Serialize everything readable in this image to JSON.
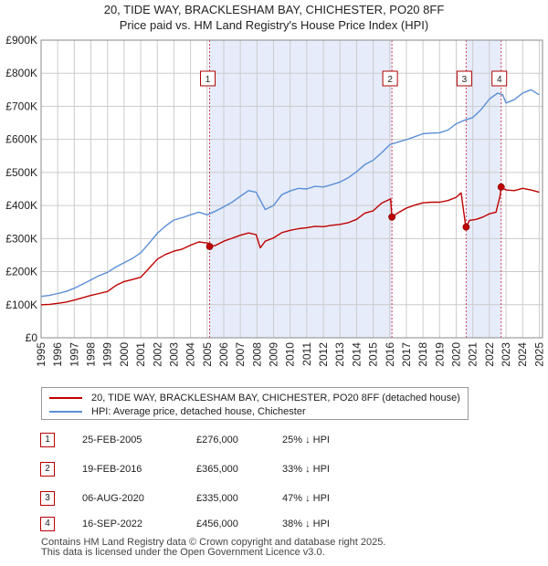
{
  "title_line1": "20, TIDE WAY, BRACKLESHAM BAY, CHICHESTER, PO20 8FF",
  "title_line2": "Price paid vs. HM Land Registry's House Price Index (HPI)",
  "colors": {
    "property": "#c00000",
    "hpi": "#5b8fd6",
    "band": "#e6ecfa",
    "marker_line": "#d04060",
    "grid": "#cccccc"
  },
  "legend": {
    "property_label": "20, TIDE WAY, BRACKLESHAM BAY, CHICHESTER, PO20 8FF (detached house)",
    "hpi_label": "HPI: Average price, detached house, Chichester"
  },
  "sales": [
    {
      "num": "1",
      "date": "25-FEB-2005",
      "price": "£276,000",
      "diff": "25% ↓ HPI",
      "t": 2005.15,
      "value": 276000
    },
    {
      "num": "2",
      "date": "19-FEB-2016",
      "price": "£365,000",
      "diff": "33% ↓ HPI",
      "t": 2016.13,
      "value": 365000
    },
    {
      "num": "3",
      "date": "06-AUG-2020",
      "price": "£335,000",
      "diff": "47% ↓ HPI",
      "t": 2020.6,
      "value": 335000
    },
    {
      "num": "4",
      "date": "16-SEP-2022",
      "price": "£456,000",
      "diff": "38% ↓ HPI",
      "t": 2022.71,
      "value": 456000
    }
  ],
  "footer_line1": "Contains HM Land Registry data © Crown copyright and database right 2025.",
  "footer_line2": "This data is licensed under the Open Government Licence v3.0.",
  "chart_data": {
    "type": "line",
    "title": "20, TIDE WAY, BRACKLESHAM BAY, CHICHESTER, PO20 8FF — Price paid vs. HM Land Registry's House Price Index (HPI)",
    "xlabel": "",
    "ylabel": "",
    "xlim": [
      1995,
      2025.2
    ],
    "ylim": [
      0,
      900000
    ],
    "grid": true,
    "legend_position": "below",
    "x_ticks": [
      1995,
      1996,
      1997,
      1998,
      1999,
      2000,
      2001,
      2002,
      2003,
      2004,
      2005,
      2006,
      2007,
      2008,
      2009,
      2010,
      2011,
      2012,
      2013,
      2014,
      2015,
      2016,
      2017,
      2018,
      2019,
      2020,
      2021,
      2022,
      2023,
      2024,
      2025
    ],
    "x_tick_labels": [
      "1995",
      "1996",
      "1997",
      "1998",
      "1999",
      "2000",
      "2001",
      "2002",
      "2003",
      "2004",
      "2005",
      "2006",
      "2007",
      "2008",
      "2009",
      "2010",
      "2011",
      "2012",
      "2013",
      "2014",
      "2015",
      "2016",
      "2017",
      "2018",
      "2019",
      "2020",
      "2021",
      "2022",
      "2023",
      "2024",
      "2025"
    ],
    "y_ticks": [
      0,
      100000,
      200000,
      300000,
      400000,
      500000,
      600000,
      700000,
      800000,
      900000
    ],
    "y_tick_labels": [
      "£0",
      "£100K",
      "£200K",
      "£300K",
      "£400K",
      "£500K",
      "£600K",
      "£700K",
      "£800K",
      "£900K"
    ],
    "shaded_spans": [
      [
        2005.15,
        2016.13
      ],
      [
        2020.6,
        2022.71
      ]
    ],
    "series": [
      {
        "name": "20, TIDE WAY, BRACKLESHAM BAY, CHICHESTER, PO20 8FF (detached house)",
        "x": [
          1995,
          1995.5,
          1996,
          1996.5,
          1997,
          1997.5,
          1998,
          1998.5,
          1999,
          1999.5,
          2000,
          2000.5,
          2001,
          2001.5,
          2002,
          2002.5,
          2003,
          2003.5,
          2004,
          2004.5,
          2005.1,
          2005.15,
          2005.5,
          2006,
          2006.5,
          2007,
          2007.5,
          2007.95,
          2008.2,
          2008.5,
          2009,
          2009.5,
          2010,
          2010.5,
          2011,
          2011.5,
          2012,
          2012.5,
          2013,
          2013.5,
          2014,
          2014.5,
          2015,
          2015.5,
          2016.05,
          2016.13,
          2016.5,
          2017,
          2017.5,
          2018,
          2018.5,
          2019,
          2019.5,
          2020,
          2020.3,
          2020.55,
          2020.6,
          2020.8,
          2021.2,
          2021.6,
          2022,
          2022.4,
          2022.65,
          2022.71,
          2023,
          2023.5,
          2024,
          2024.5,
          2025
        ],
        "values": [
          100000,
          101000,
          104000,
          108000,
          114000,
          121000,
          128000,
          134000,
          140000,
          158000,
          170000,
          176000,
          183000,
          210000,
          238000,
          252000,
          262000,
          268000,
          280000,
          290000,
          286000,
          276000,
          279000,
          292000,
          301000,
          310000,
          317000,
          312000,
          272000,
          292000,
          302000,
          318000,
          325000,
          330000,
          333000,
          337000,
          336000,
          340000,
          343000,
          348000,
          358000,
          377000,
          384000,
          407000,
          420000,
          365000,
          378000,
          392000,
          401000,
          408000,
          410000,
          410000,
          415000,
          425000,
          438000,
          345000,
          335000,
          355000,
          358000,
          365000,
          375000,
          380000,
          430000,
          456000,
          447000,
          445000,
          452000,
          447000,
          440000
        ]
      },
      {
        "name": "HPI: Average price, detached house, Chichester",
        "x": [
          1995,
          1995.5,
          1996,
          1996.5,
          1997,
          1997.5,
          1998,
          1998.5,
          1999,
          1999.5,
          2000,
          2000.5,
          2001,
          2001.5,
          2002,
          2002.5,
          2003,
          2003.5,
          2004,
          2004.5,
          2005,
          2005.5,
          2006,
          2006.5,
          2007,
          2007.5,
          2007.95,
          2008.5,
          2009,
          2009.5,
          2010,
          2010.5,
          2011,
          2011.5,
          2012,
          2012.5,
          2013,
          2013.5,
          2014,
          2014.5,
          2015,
          2015.5,
          2016,
          2016.5,
          2017,
          2017.5,
          2018,
          2018.5,
          2019,
          2019.5,
          2020,
          2020.5,
          2021,
          2021.5,
          2022,
          2022.5,
          2022.8,
          2023,
          2023.5,
          2024,
          2024.5,
          2025
        ],
        "values": [
          125000,
          128000,
          134000,
          140000,
          150000,
          162000,
          175000,
          188000,
          198000,
          214000,
          227000,
          240000,
          257000,
          286000,
          316000,
          338000,
          356000,
          363000,
          372000,
          380000,
          372000,
          383000,
          396000,
          410000,
          428000,
          445000,
          440000,
          388000,
          400000,
          433000,
          444000,
          452000,
          450000,
          458000,
          456000,
          463000,
          471000,
          484000,
          502000,
          524000,
          537000,
          559000,
          584000,
          592000,
          599000,
          608000,
          617000,
          619000,
          620000,
          628000,
          647000,
          658000,
          666000,
          690000,
          722000,
          740000,
          735000,
          710000,
          720000,
          740000,
          750000,
          735000
        ]
      }
    ]
  }
}
